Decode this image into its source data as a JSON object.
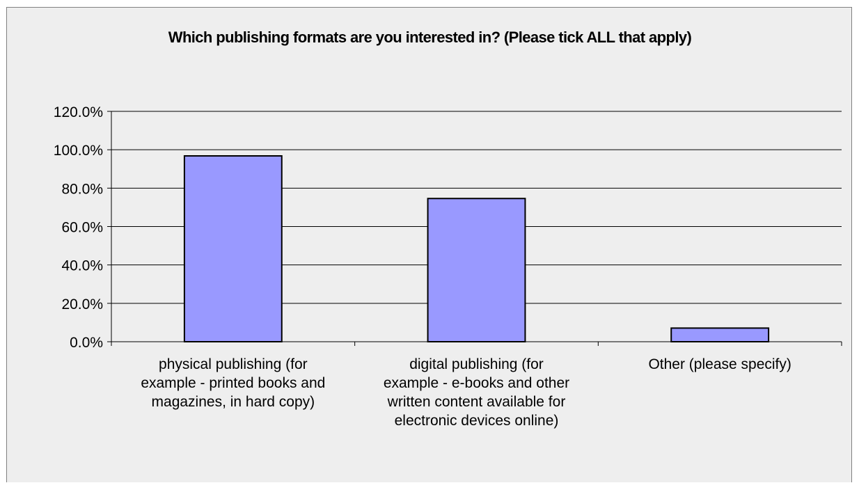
{
  "chart_data": {
    "type": "bar",
    "title": "Which publishing formats are you interested in? (Please tick ALL that apply)",
    "categories": [
      [
        "physical publishing (for",
        "example - printed books and",
        "magazines, in hard copy)"
      ],
      [
        "digital publishing (for",
        "example - e-books and other",
        "written content available for",
        "electronic devices online)"
      ],
      [
        "Other (please specify)"
      ]
    ],
    "values": [
      96.8,
      74.6,
      7.1
    ],
    "y_ticks": [
      "0.0%",
      "20.0%",
      "40.0%",
      "60.0%",
      "80.0%",
      "100.0%",
      "120.0%"
    ],
    "ylim": [
      0,
      120
    ],
    "grid": true,
    "bar_color": "#9999ff",
    "bar_border": "#000000",
    "plot_background": "#eeeeee"
  }
}
